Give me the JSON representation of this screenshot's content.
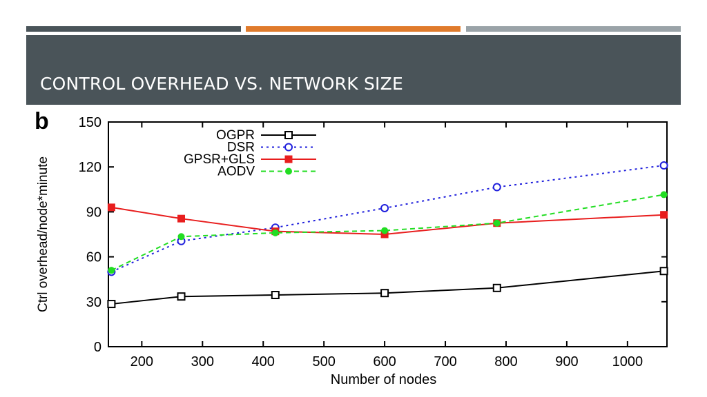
{
  "slide": {
    "title": "CONTROL OVERHEAD VS. NETWORK SIZE",
    "header_color": "#4a5459",
    "accent_bars": [
      "#4a5459",
      "#e07b2c",
      "#9aa3a8"
    ]
  },
  "chart_data": {
    "type": "line",
    "panel_label": "b",
    "title": "",
    "xlabel": "Number of nodes",
    "ylabel": "Ctrl overhead/node*minute",
    "xlim": [
      145,
      1065
    ],
    "ylim": [
      0,
      150
    ],
    "xticks": [
      200,
      300,
      400,
      500,
      600,
      700,
      800,
      900,
      1000
    ],
    "yticks": [
      0,
      30,
      60,
      90,
      120,
      150
    ],
    "grid": false,
    "legend_position": "top-left",
    "series": [
      {
        "name": "OGPR",
        "color": "#000000",
        "dash": "solid",
        "marker": "square-open",
        "x": [
          150,
          265,
          420,
          600,
          785,
          1060
        ],
        "y": [
          28.5,
          33.5,
          34.5,
          35.8,
          39.2,
          50.5
        ]
      },
      {
        "name": "DSR",
        "color": "#1f1fdc",
        "dash": "dotted",
        "marker": "circle-open",
        "x": [
          150,
          265,
          420,
          600,
          785,
          1060
        ],
        "y": [
          50,
          70.5,
          79.5,
          92.5,
          106.5,
          121
        ]
      },
      {
        "name": "GPSR+GLS",
        "color": "#e81e1e",
        "dash": "solid",
        "marker": "square-filled",
        "x": [
          150,
          265,
          420,
          600,
          785,
          1060
        ],
        "y": [
          93,
          85.5,
          77,
          75,
          82.5,
          88
        ]
      },
      {
        "name": "AODV",
        "color": "#22dd22",
        "dash": "dashed",
        "marker": "circle-filled",
        "x": [
          150,
          265,
          420,
          600,
          785,
          1060
        ],
        "y": [
          51,
          73.5,
          76,
          77.5,
          82.5,
          101.5
        ]
      }
    ]
  }
}
